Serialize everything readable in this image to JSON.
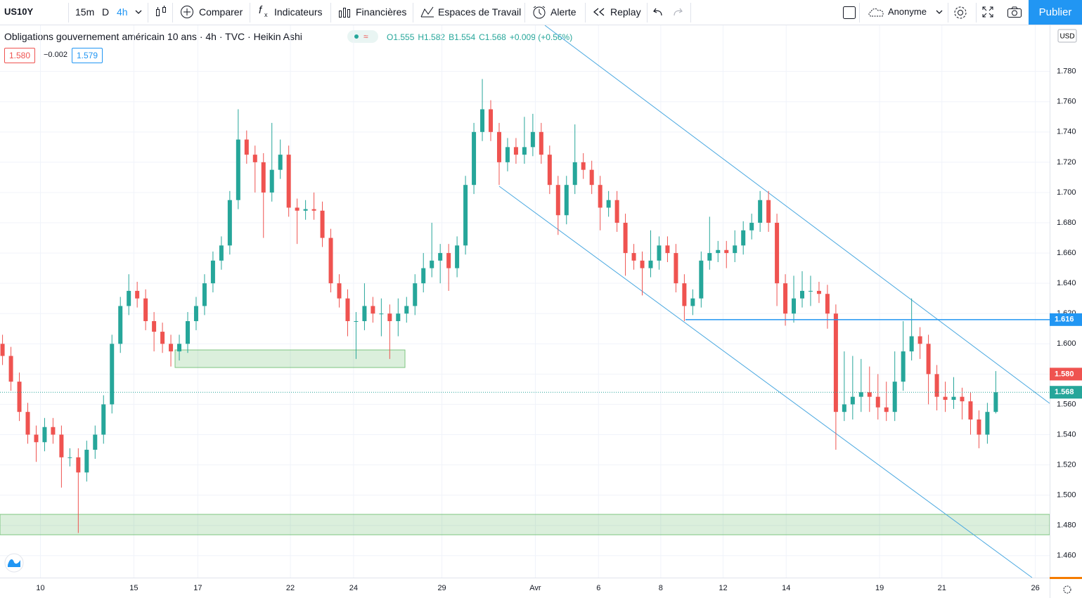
{
  "toolbar": {
    "symbol": "US10Y",
    "intervals": [
      "15m",
      "D",
      "4h"
    ],
    "buttons": [
      "Comparer",
      "Indicateurs",
      "Financières",
      "Espaces de Travail",
      "Alerte",
      "Replay"
    ],
    "account": "Anonyme",
    "publish": "Publier"
  },
  "legend": {
    "title": "Obligations gouvernement américain 10 ans · 4h · TVC · Heikin Ashi",
    "ohlc": [
      "O1.555",
      "H1.582",
      "B1.554",
      "C1.568",
      "+0.009 (+0.56%)"
    ],
    "boxes": [
      "1.580",
      "−0.002",
      "1.579"
    ]
  },
  "chart_data": {
    "type": "candlestick",
    "currency": "USD",
    "up_color": "#26a69a",
    "down_color": "#ef5350",
    "grid": true,
    "open": [
      1.6,
      1.592,
      1.575,
      1.555,
      1.54,
      1.535,
      1.545,
      1.54,
      1.525,
      1.525,
      1.515,
      1.53,
      1.54,
      1.56,
      1.6,
      1.625,
      1.635,
      1.63,
      1.615,
      1.608,
      1.6,
      1.595,
      1.6,
      1.615,
      1.625,
      1.64,
      1.655,
      1.665,
      1.695,
      1.735,
      1.725,
      1.72,
      1.7,
      1.715,
      1.725,
      1.69,
      1.688,
      1.689,
      1.688,
      1.67,
      1.64,
      1.63,
      1.615,
      1.615,
      1.625,
      1.62,
      1.62,
      1.615,
      1.62,
      1.625,
      1.64,
      1.65,
      1.655,
      1.66,
      1.65,
      1.665,
      1.705,
      1.74,
      1.755,
      1.74,
      1.72,
      1.73,
      1.725,
      1.73,
      1.74,
      1.725,
      1.705,
      1.685,
      1.705,
      1.72,
      1.715,
      1.705,
      1.69,
      1.695,
      1.68,
      1.66,
      1.655,
      1.65,
      1.655,
      1.665,
      1.66,
      1.64,
      1.625,
      1.63,
      1.655,
      1.66,
      1.662,
      1.66,
      1.665,
      1.675,
      1.68,
      1.695,
      1.68,
      1.64,
      1.62,
      1.63,
      1.635,
      1.635,
      1.633,
      1.62,
      1.555,
      1.56,
      1.565,
      1.568,
      1.565,
      1.558,
      1.555,
      1.575,
      1.595,
      1.605,
      1.6,
      1.58,
      1.565,
      1.563,
      1.565,
      1.562,
      1.55,
      1.54,
      1.555
    ],
    "high": [
      1.606,
      1.598,
      1.581,
      1.561,
      1.546,
      1.551,
      1.551,
      1.546,
      1.531,
      1.531,
      1.536,
      1.546,
      1.566,
      1.606,
      1.631,
      1.646,
      1.641,
      1.636,
      1.621,
      1.614,
      1.606,
      1.606,
      1.621,
      1.631,
      1.646,
      1.661,
      1.671,
      1.701,
      1.755,
      1.741,
      1.731,
      1.726,
      1.746,
      1.735,
      1.731,
      1.696,
      1.695,
      1.7,
      1.694,
      1.676,
      1.646,
      1.636,
      1.621,
      1.64,
      1.631,
      1.63,
      1.626,
      1.63,
      1.631,
      1.646,
      1.66,
      1.68,
      1.666,
      1.666,
      1.671,
      1.711,
      1.746,
      1.775,
      1.761,
      1.746,
      1.736,
      1.736,
      1.75,
      1.752,
      1.746,
      1.731,
      1.711,
      1.711,
      1.745,
      1.726,
      1.721,
      1.711,
      1.701,
      1.701,
      1.686,
      1.666,
      1.661,
      1.675,
      1.671,
      1.671,
      1.666,
      1.646,
      1.636,
      1.661,
      1.684,
      1.668,
      1.668,
      1.675,
      1.681,
      1.686,
      1.701,
      1.701,
      1.686,
      1.646,
      1.645,
      1.648,
      1.645,
      1.641,
      1.639,
      1.626,
      1.595,
      1.592,
      1.59,
      1.585,
      1.58,
      1.575,
      1.595,
      1.615,
      1.63,
      1.611,
      1.606,
      1.586,
      1.575,
      1.578,
      1.571,
      1.568,
      1.556,
      1.561,
      1.582
    ],
    "low": [
      1.586,
      1.569,
      1.549,
      1.534,
      1.522,
      1.529,
      1.534,
      1.505,
      1.519,
      1.475,
      1.509,
      1.524,
      1.534,
      1.554,
      1.594,
      1.619,
      1.624,
      1.609,
      1.595,
      1.594,
      1.585,
      1.589,
      1.594,
      1.609,
      1.619,
      1.634,
      1.649,
      1.659,
      1.689,
      1.719,
      1.7,
      1.67,
      1.694,
      1.709,
      1.684,
      1.666,
      1.682,
      1.682,
      1.664,
      1.634,
      1.624,
      1.605,
      1.59,
      1.609,
      1.614,
      1.605,
      1.59,
      1.605,
      1.614,
      1.619,
      1.634,
      1.644,
      1.64,
      1.635,
      1.644,
      1.659,
      1.699,
      1.734,
      1.734,
      1.705,
      1.714,
      1.719,
      1.719,
      1.724,
      1.719,
      1.699,
      1.672,
      1.679,
      1.699,
      1.709,
      1.699,
      1.675,
      1.684,
      1.674,
      1.645,
      1.649,
      1.632,
      1.644,
      1.649,
      1.654,
      1.634,
      1.615,
      1.619,
      1.624,
      1.649,
      1.654,
      1.65,
      1.654,
      1.659,
      1.669,
      1.674,
      1.674,
      1.625,
      1.612,
      1.614,
      1.624,
      1.625,
      1.627,
      1.61,
      1.53,
      1.549,
      1.55,
      1.555,
      1.555,
      1.55,
      1.549,
      1.549,
      1.569,
      1.589,
      1.59,
      1.56,
      1.556,
      1.555,
      1.557,
      1.55,
      1.54,
      1.531,
      1.534,
      1.554
    ],
    "close": [
      1.592,
      1.575,
      1.555,
      1.54,
      1.535,
      1.545,
      1.54,
      1.525,
      1.525,
      1.515,
      1.53,
      1.54,
      1.56,
      1.6,
      1.625,
      1.635,
      1.63,
      1.615,
      1.608,
      1.6,
      1.595,
      1.6,
      1.615,
      1.625,
      1.64,
      1.655,
      1.665,
      1.695,
      1.735,
      1.725,
      1.72,
      1.7,
      1.715,
      1.725,
      1.69,
      1.688,
      1.689,
      1.688,
      1.67,
      1.64,
      1.63,
      1.615,
      1.615,
      1.625,
      1.62,
      1.62,
      1.615,
      1.62,
      1.625,
      1.64,
      1.65,
      1.655,
      1.66,
      1.65,
      1.665,
      1.705,
      1.74,
      1.755,
      1.74,
      1.72,
      1.73,
      1.725,
      1.73,
      1.74,
      1.725,
      1.705,
      1.685,
      1.705,
      1.72,
      1.715,
      1.705,
      1.69,
      1.695,
      1.68,
      1.66,
      1.655,
      1.65,
      1.655,
      1.665,
      1.66,
      1.64,
      1.625,
      1.63,
      1.655,
      1.66,
      1.662,
      1.66,
      1.665,
      1.675,
      1.68,
      1.695,
      1.68,
      1.64,
      1.62,
      1.63,
      1.635,
      1.635,
      1.633,
      1.62,
      1.555,
      1.56,
      1.565,
      1.568,
      1.565,
      1.558,
      1.555,
      1.575,
      1.595,
      1.605,
      1.6,
      1.58,
      1.565,
      1.563,
      1.565,
      1.562,
      1.55,
      1.54,
      1.555,
      1.568
    ],
    "xlim": [
      -0.3,
      124.4
    ],
    "xticks": [
      {
        "value": 4.5,
        "label": "10"
      },
      {
        "value": 15.6,
        "label": "15"
      },
      {
        "value": 23.2,
        "label": "17"
      },
      {
        "value": 34.2,
        "label": "22"
      },
      {
        "value": 41.7,
        "label": "24"
      },
      {
        "value": 52.2,
        "label": "29"
      },
      {
        "value": 63.3,
        "label": "Avr"
      },
      {
        "value": 70.8,
        "label": "6"
      },
      {
        "value": 78.2,
        "label": "8"
      },
      {
        "value": 85.6,
        "label": "12"
      },
      {
        "value": 93.1,
        "label": "14"
      },
      {
        "value": 104.2,
        "label": "19"
      },
      {
        "value": 111.6,
        "label": "21"
      },
      {
        "value": 122.7,
        "label": "26"
      }
    ],
    "ylim": [
      1.4455,
      1.8105
    ],
    "yticks": [
      {
        "value": 1.46,
        "label": "1.460"
      },
      {
        "value": 1.48,
        "label": "1.480"
      },
      {
        "value": 1.5,
        "label": "1.500"
      },
      {
        "value": 1.52,
        "label": "1.520"
      },
      {
        "value": 1.54,
        "label": "1.540"
      },
      {
        "value": 1.56,
        "label": "1.560"
      },
      {
        "value": 1.58,
        "label": "1.580"
      },
      {
        "value": 1.6,
        "label": "1.600"
      },
      {
        "value": 1.62,
        "label": "1.620"
      },
      {
        "value": 1.64,
        "label": "1.640"
      },
      {
        "value": 1.66,
        "label": "1.660"
      },
      {
        "value": 1.68,
        "label": "1.680"
      },
      {
        "value": 1.7,
        "label": "1.700"
      },
      {
        "value": 1.72,
        "label": "1.720"
      },
      {
        "value": 1.74,
        "label": "1.740"
      },
      {
        "value": 1.76,
        "label": "1.760"
      },
      {
        "value": 1.78,
        "label": "1.780"
      }
    ],
    "price_labels": [
      {
        "value": 1.616,
        "color": "#2196f3"
      },
      {
        "value": 1.58,
        "label": "1.580",
        "color": "#ef5350"
      },
      {
        "value": 1.568,
        "color": "#26a69a"
      }
    ]
  }
}
